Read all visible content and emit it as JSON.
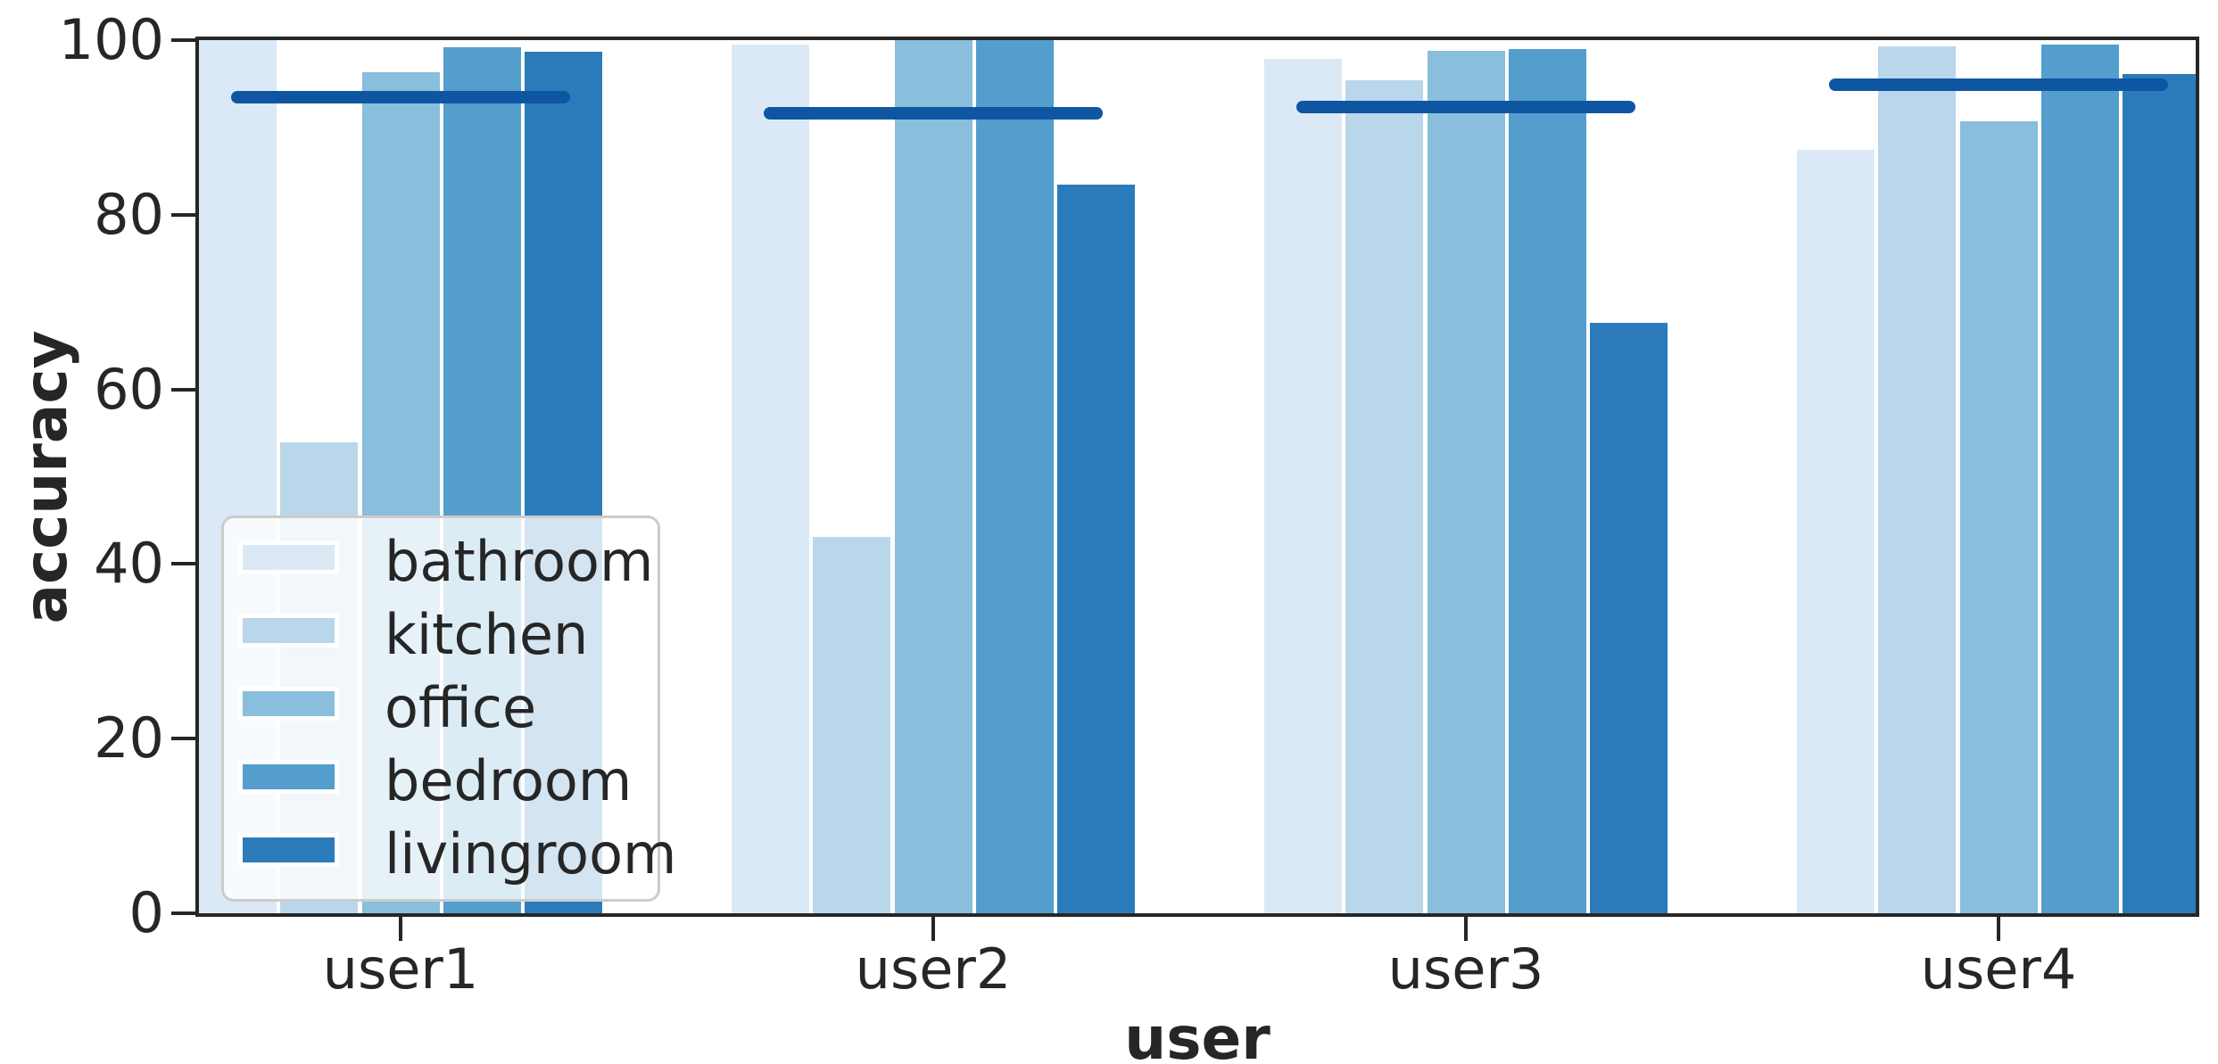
{
  "chart_data": {
    "type": "bar",
    "title": "",
    "xlabel": "user",
    "ylabel": "accuracy",
    "categories": [
      "user1",
      "user2",
      "user3",
      "user4"
    ],
    "series": [
      {
        "name": "bathroom",
        "color": "#dbe9f6",
        "values": [
          100.0,
          99.5,
          97.9,
          87.4
        ]
      },
      {
        "name": "kitchen",
        "color": "#bad6eb",
        "values": [
          53.9,
          43.1,
          95.4,
          99.3
        ]
      },
      {
        "name": "office",
        "color": "#89bedc",
        "values": [
          96.3,
          100.0,
          98.8,
          90.7
        ]
      },
      {
        "name": "bedroom",
        "color": "#539ecd",
        "values": [
          99.2,
          100.0,
          99.0,
          99.5
        ]
      },
      {
        "name": "livingroom",
        "color": "#2b7bba",
        "values": [
          98.7,
          83.5,
          67.6,
          96.1
        ]
      }
    ],
    "group_mean_lines": {
      "color": "#0e56a2",
      "values": [
        93.5,
        91.6,
        92.3,
        94.9
      ]
    },
    "ylim": [
      0,
      100
    ],
    "yticks": [
      0,
      20,
      40,
      60,
      80,
      100
    ],
    "xtick_labels": [
      "user1",
      "user2",
      "user3",
      "user4"
    ],
    "grid": false,
    "legend_position": "lower left",
    "legend_labels": [
      "bathroom",
      "kitchen",
      "office",
      "bedroom",
      "livingroom"
    ],
    "text_color": "#262626",
    "spine_color": "#262626"
  }
}
